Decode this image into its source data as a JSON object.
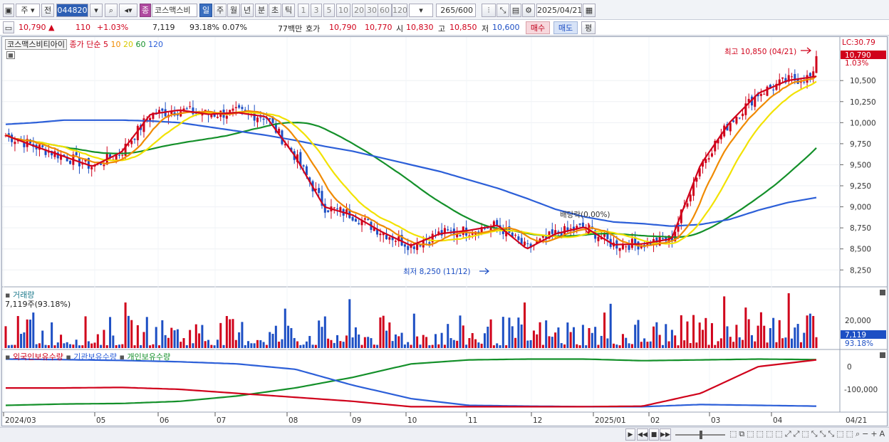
{
  "toolbar": {
    "market": "주",
    "prefix": "전",
    "code": "044820",
    "type_badge": "종",
    "stock_name": "코스맥스비",
    "period_tabs": [
      "일",
      "주",
      "월",
      "년",
      "분",
      "초",
      "틱"
    ],
    "active_period": "일",
    "intervals": [
      "1",
      "3",
      "5",
      "10",
      "20",
      "30",
      "60",
      "120"
    ],
    "count": "265",
    "count_total": "/600",
    "date": "2025/04/21"
  },
  "price": {
    "current": "10,790",
    "arrow": "▲",
    "change": "110",
    "change_pct": "+1.03%",
    "volume": "7,119",
    "volume_ratio": "93.18%",
    "turnover_pct": "0.07%",
    "amount": "77백만",
    "ask_label": "호가",
    "ask1": "10,790",
    "ask2": "10,770",
    "open_label": "시",
    "open": "10,830",
    "high_label": "고",
    "high": "10,850",
    "low_label": "저",
    "low": "10,600",
    "buy_label": "매수",
    "sell_label": "매도",
    "eval_label": "평"
  },
  "chart": {
    "stock_label": "코스맥스비티아이",
    "ma_prefix": "종가 단순",
    "ma_periods": [
      "5",
      "10",
      "20",
      "60",
      "120"
    ],
    "ma_colors": [
      "#d0021b",
      "#f08a00",
      "#f2e200",
      "#14902a",
      "#2c5fd8"
    ],
    "annotation_high": "최고 10,850 (04/21)",
    "annotation_low": "최저 8,250 (11/12)",
    "annotation_dividend": "배당락(0.00%)",
    "right_tags": [
      "LC:30.79",
      "10,790",
      "1.03%"
    ],
    "up_color": "#d0021b",
    "down_color": "#1d4fc4"
  },
  "volume_panel": {
    "title": "거래량",
    "value": "7,119주(93.18%)",
    "axis_tick": "20,000",
    "right_tags": [
      "7,119",
      "93.18%"
    ]
  },
  "holding_panel": {
    "legends": [
      "외국인보유수량",
      "기관보유수량",
      "개인보유수량"
    ],
    "legend_colors": [
      "#d0021b",
      "#2c5fd8",
      "#14902a"
    ],
    "axis_ticks": [
      "0",
      "-100,000"
    ]
  },
  "x_axis": [
    "2024/03",
    "05",
    "06",
    "07",
    "08",
    "09",
    "10",
    "11",
    "12",
    "2025/01",
    "02",
    "03",
    "04"
  ],
  "x_axis_right": "04/21",
  "chart_data": {
    "type": "candlestick",
    "price_ticks": [
      "10,500",
      "10,250",
      "10,000",
      "9,750",
      "9,500",
      "9,250",
      "9,000",
      "8,750",
      "8,500",
      "8,250"
    ],
    "ylim": [
      8100,
      10950
    ],
    "high": 10850,
    "low": 8250,
    "ma_close_approx": [
      {
        "name": "5",
        "values": [
          9850,
          9720,
          9600,
          9480,
          9650,
          10100,
          10150,
          10100,
          10120,
          10070,
          9600,
          9000,
          8900,
          8700,
          8540,
          8680,
          8720,
          8780,
          8500,
          8680,
          8760,
          8550,
          8560,
          8620,
          9500,
          10000,
          10350,
          10500,
          10550
        ]
      },
      {
        "name": "120",
        "values": [
          9980,
          10000,
          10030,
          10030,
          10030,
          10020,
          10000,
          9950,
          9900,
          9850,
          9790,
          9720,
          9660,
          9580,
          9500,
          9420,
          9320,
          9220,
          9100,
          8970,
          8880,
          8820,
          8800,
          8770,
          8790,
          8850,
          8960,
          9050,
          9110
        ]
      }
    ]
  }
}
